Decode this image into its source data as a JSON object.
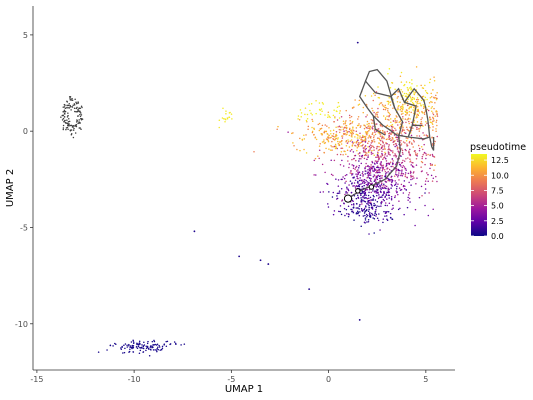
{
  "chart_data": {
    "type": "scatter",
    "title": "",
    "xlabel": "UMAP 1",
    "ylabel": "UMAP 2",
    "xlim": [
      -15.2,
      6.5
    ],
    "ylim": [
      -12.4,
      6.5
    ],
    "x_ticks": [
      -15,
      -10,
      -5,
      0,
      5
    ],
    "y_ticks": [
      5,
      0,
      -5,
      -10
    ],
    "grid": false,
    "legend": {
      "title": "pseudotime",
      "position": "right",
      "ticks": [
        12.5,
        10.0,
        7.5,
        5.0,
        2.5,
        0.0
      ],
      "range": [
        0,
        13.5
      ],
      "colors": [
        "#0d0887",
        "#5c01a6",
        "#9c179e",
        "#cc4778",
        "#ed7953",
        "#fdb42f",
        "#f0f921"
      ]
    },
    "clusters": [
      {
        "name": "main",
        "center": [
          3.3,
          -0.5
        ],
        "spread": [
          1.7,
          2.2
        ],
        "n": 1900,
        "pseudotime": "gradient",
        "color_mode": "pseudotime"
      },
      {
        "name": "upper-left-small",
        "center": [
          -13.2,
          0.8
        ],
        "spread": [
          0.5,
          0.8
        ],
        "n": 140,
        "color_mode": "gray"
      },
      {
        "name": "bottom-left",
        "center": [
          -9.5,
          -11.2
        ],
        "spread": [
          0.9,
          0.15
        ],
        "n": 120,
        "color_mode": "pseudotime",
        "pseudotime": 0.3
      },
      {
        "name": "yellow-green-small",
        "center": [
          -5.4,
          0.8
        ],
        "spread": [
          0.2,
          0.2
        ],
        "n": 18,
        "color_mode": "pseudotime",
        "pseudotime": 13.0
      }
    ],
    "isolated_points": [
      {
        "x": -6.9,
        "y": -5.2,
        "pseudotime": 0.5
      },
      {
        "x": -4.6,
        "y": -6.5,
        "pseudotime": 0.5
      },
      {
        "x": -3.5,
        "y": -6.7,
        "pseudotime": 0.5
      },
      {
        "x": -3.1,
        "y": -6.9,
        "pseudotime": 0.5
      },
      {
        "x": -1.0,
        "y": -8.2,
        "pseudotime": 0.5
      },
      {
        "x": 1.6,
        "y": -9.8,
        "pseudotime": 0.5
      },
      {
        "x": 1.5,
        "y": 4.6,
        "pseudotime": 0.5
      }
    ],
    "trajectory": [
      [
        [
          1.0,
          -3.5
        ],
        [
          1.6,
          -3.1
        ],
        [
          2.3,
          -2.8
        ],
        [
          2.9,
          -2.5
        ],
        [
          3.5,
          -1.8
        ],
        [
          3.7,
          -1.0
        ],
        [
          3.6,
          -0.3
        ],
        [
          3.8,
          0.5
        ],
        [
          3.4,
          1.2
        ],
        [
          3.2,
          1.8
        ],
        [
          3.6,
          2.2
        ],
        [
          3.9,
          1.5
        ],
        [
          4.5,
          1.3
        ],
        [
          4.3,
          0.3
        ],
        [
          4.1,
          -0.3
        ],
        [
          4.9,
          -0.4
        ],
        [
          5.2,
          -0.3
        ]
      ],
      [
        [
          3.2,
          1.8
        ],
        [
          2.4,
          2.0
        ],
        [
          1.9,
          2.6
        ],
        [
          1.6,
          1.8
        ],
        [
          2.0,
          1.2
        ],
        [
          2.3,
          0.8
        ],
        [
          2.8,
          0.3
        ],
        [
          3.1,
          0.1
        ],
        [
          3.5,
          -0.2
        ],
        [
          4.1,
          -0.3
        ]
      ],
      [
        [
          3.4,
          1.2
        ],
        [
          3.0,
          2.6
        ],
        [
          2.5,
          3.2
        ],
        [
          2.1,
          3.1
        ],
        [
          1.9,
          2.6
        ]
      ],
      [
        [
          2.3,
          0.8
        ],
        [
          2.4,
          0.1
        ],
        [
          2.9,
          -0.2
        ]
      ],
      [
        [
          3.9,
          1.5
        ],
        [
          4.4,
          2.2
        ],
        [
          4.9,
          1.6
        ],
        [
          5.0,
          1.2
        ],
        [
          5.1,
          0.6
        ],
        [
          5.2,
          -0.3
        ],
        [
          5.3,
          -0.8
        ],
        [
          5.4,
          -1.0
        ],
        [
          5.4,
          -0.3
        ]
      ],
      [
        [
          4.3,
          0.3
        ],
        [
          4.8,
          0.3
        ]
      ]
    ],
    "trajectory_nodes": [
      {
        "x": 1.0,
        "y": -3.5,
        "size": "large"
      },
      {
        "x": 1.5,
        "y": -3.1,
        "size": "small"
      },
      {
        "x": 2.2,
        "y": -2.9,
        "size": "small"
      }
    ]
  }
}
